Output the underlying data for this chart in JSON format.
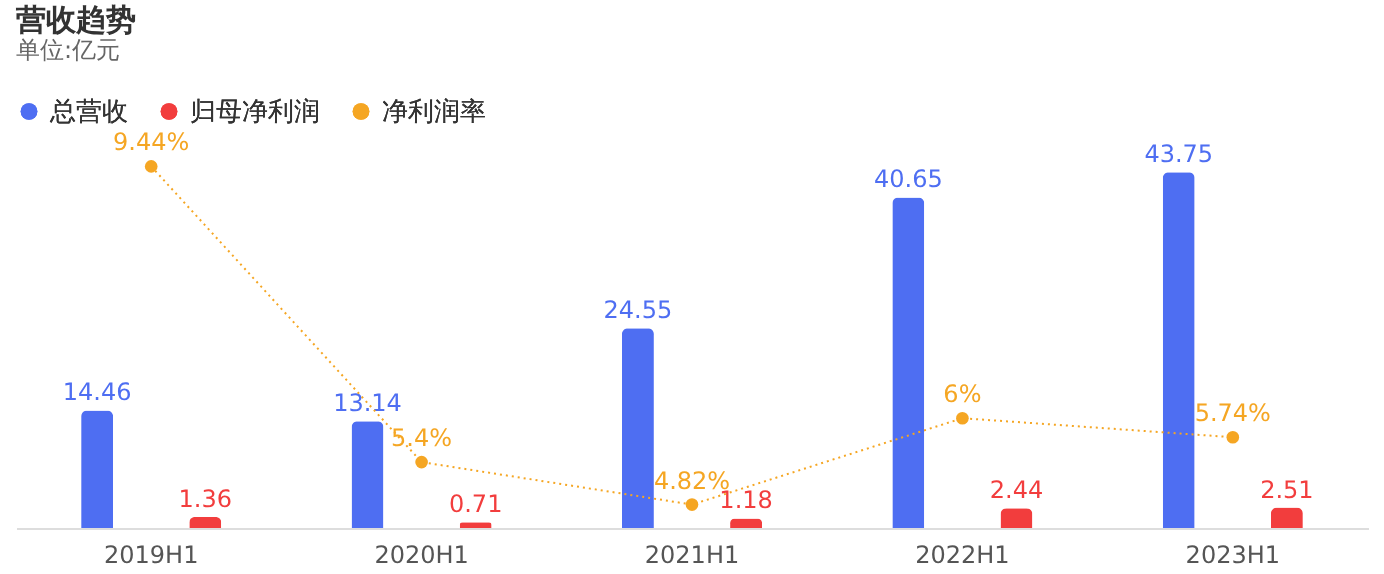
{
  "chart_data": {
    "type": "bar",
    "title": "营收趋势",
    "subtitle": "单位:亿元",
    "categories": [
      "2019H1",
      "2020H1",
      "2021H1",
      "2022H1",
      "2023H1"
    ],
    "series": [
      {
        "name": "总营收",
        "color": "#4e6ef2",
        "values": [
          14.46,
          13.14,
          24.55,
          40.65,
          43.75
        ]
      },
      {
        "name": "归母净利润",
        "color": "#f23d3d",
        "values": [
          1.36,
          0.71,
          1.18,
          2.44,
          2.51
        ]
      },
      {
        "name": "净利润率",
        "type": "line",
        "axis": "y2",
        "color": "#f5a623",
        "values": [
          9.44,
          5.4,
          4.82,
          6,
          5.74
        ],
        "value_labels": [
          "9.44%",
          "5.4%",
          "4.82%",
          "6%",
          "5.74%"
        ],
        "marker": "circle",
        "line_style": "dotted"
      }
    ],
    "data_labels": true,
    "legend": "top left",
    "grid": false
  }
}
